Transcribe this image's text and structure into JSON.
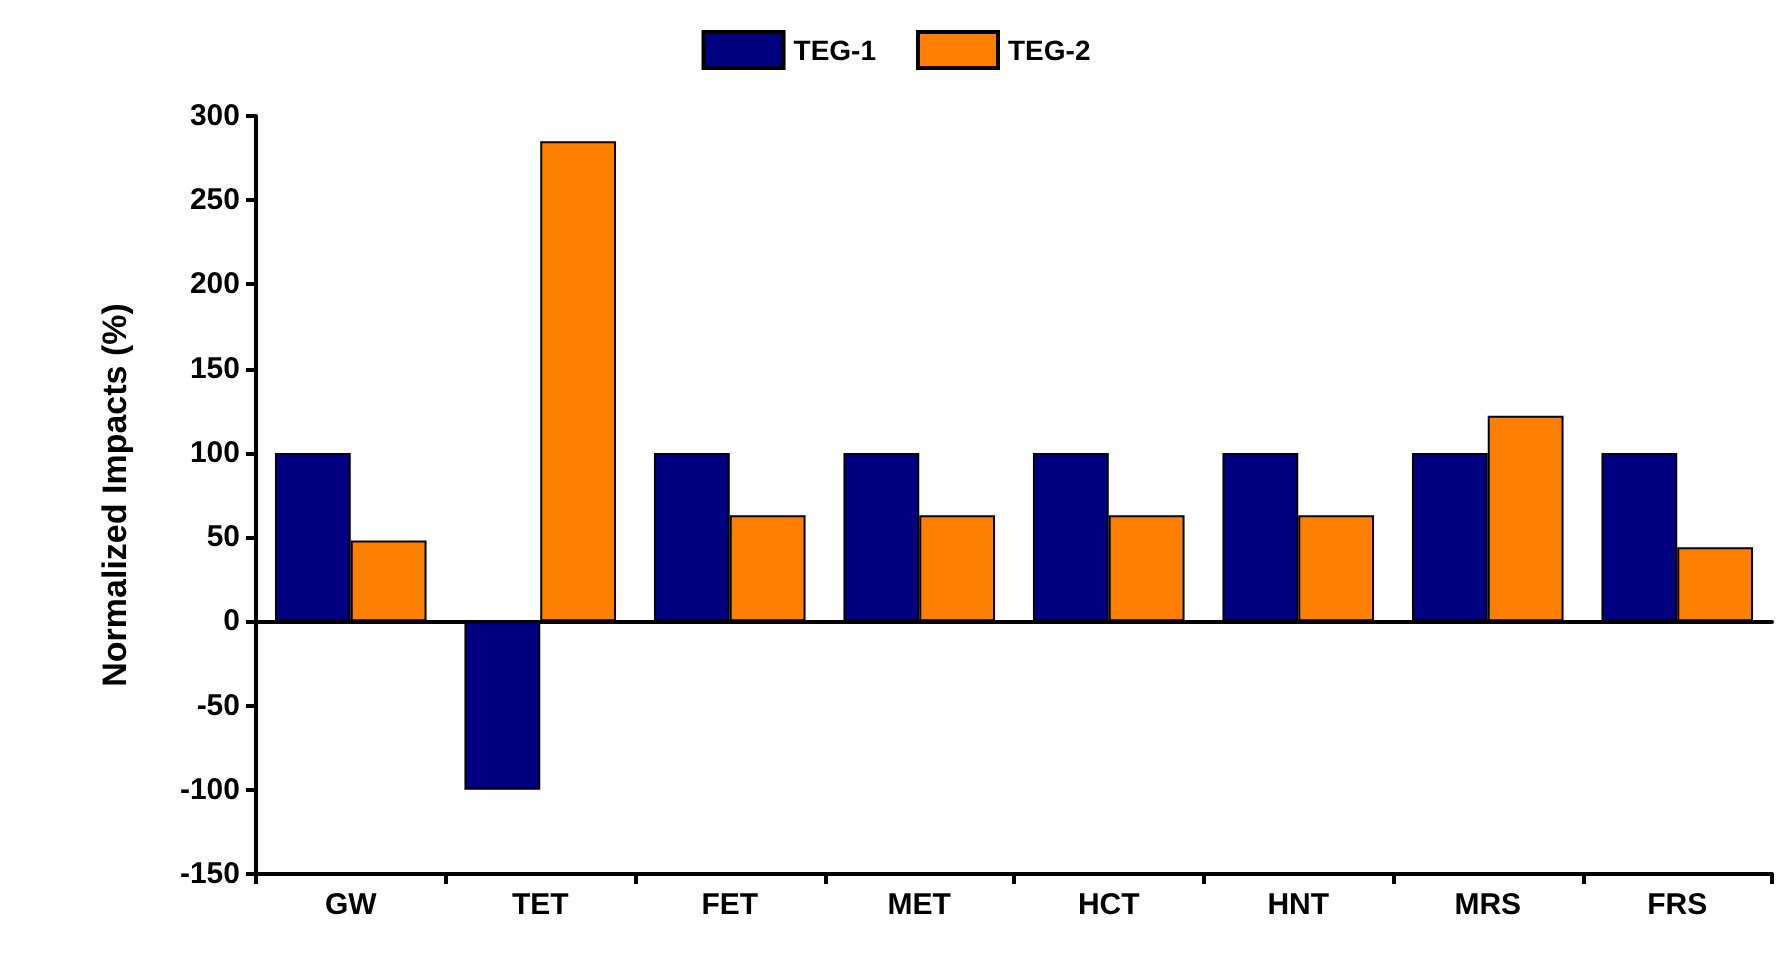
{
  "chart_data": {
    "type": "bar",
    "ylabel": "Normalized Impacts (%)",
    "categories": [
      "GW",
      "TET",
      "FET",
      "MET",
      "HCT",
      "HNT",
      "MRS",
      "FRS"
    ],
    "series": [
      {
        "name": "TEG-1",
        "color": "#000080",
        "values": [
          100,
          -100,
          100,
          100,
          100,
          100,
          100,
          100
        ]
      },
      {
        "name": "TEG-2",
        "color": "#ff8000",
        "values": [
          48,
          285,
          63,
          63,
          63,
          63,
          122,
          44
        ]
      }
    ],
    "ylim": [
      -150,
      300
    ],
    "yticks": [
      -150,
      -100,
      -50,
      0,
      50,
      100,
      150,
      200,
      250,
      300
    ],
    "legend": "top"
  }
}
